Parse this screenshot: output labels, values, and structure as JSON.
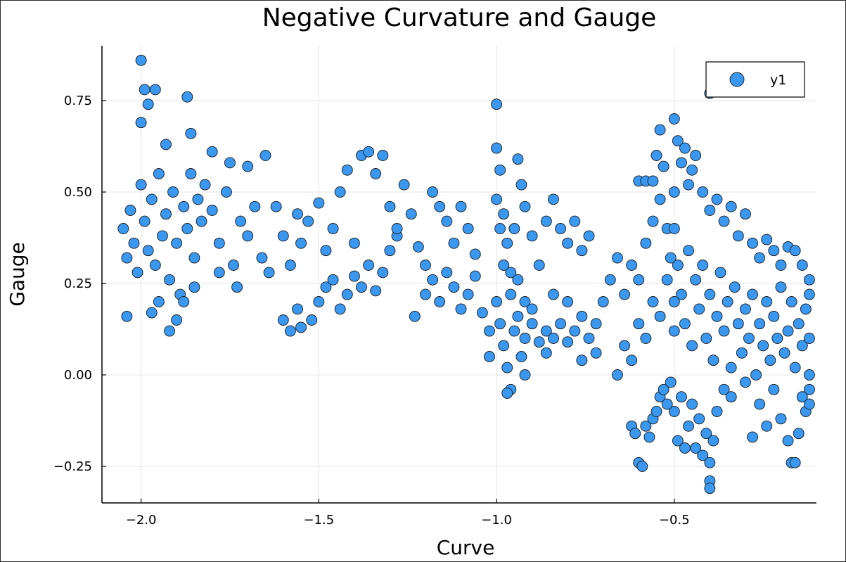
{
  "chart_data": {
    "type": "scatter",
    "title": "Negative Curvature and Gauge",
    "xlabel": "Curve",
    "ylabel": "Gauge",
    "xlim": [
      -2.11,
      -0.1
    ],
    "ylim": [
      -0.35,
      0.9
    ],
    "xticks": [
      -2.0,
      -1.5,
      -1.0,
      -0.5
    ],
    "xtick_labels": [
      "−2.0",
      "−1.5",
      "−1.0",
      "−0.5"
    ],
    "yticks": [
      -0.25,
      0.0,
      0.25,
      0.5,
      0.75
    ],
    "ytick_labels": [
      "−0.25",
      "0.00",
      "0.25",
      "0.50",
      "0.75"
    ],
    "grid": true,
    "legend_position": "top-right",
    "series": [
      {
        "name": "y1",
        "color": "#3a98f0",
        "points": [
          [
            -2.0,
            0.86
          ],
          [
            -1.99,
            0.78
          ],
          [
            -1.98,
            0.74
          ],
          [
            -1.96,
            0.78
          ],
          [
            -1.87,
            0.76
          ],
          [
            -2.0,
            0.69
          ],
          [
            -1.93,
            0.63
          ],
          [
            -1.86,
            0.66
          ],
          [
            -1.8,
            0.61
          ],
          [
            -1.75,
            0.58
          ],
          [
            -1.7,
            0.57
          ],
          [
            -1.65,
            0.6
          ],
          [
            -2.05,
            0.4
          ],
          [
            -2.04,
            0.32
          ],
          [
            -2.03,
            0.45
          ],
          [
            -2.02,
            0.36
          ],
          [
            -2.01,
            0.28
          ],
          [
            -2.0,
            0.52
          ],
          [
            -1.99,
            0.42
          ],
          [
            -1.98,
            0.34
          ],
          [
            -1.97,
            0.48
          ],
          [
            -1.96,
            0.3
          ],
          [
            -1.95,
            0.55
          ],
          [
            -1.94,
            0.38
          ],
          [
            -1.93,
            0.44
          ],
          [
            -1.92,
            0.26
          ],
          [
            -1.91,
            0.5
          ],
          [
            -1.9,
            0.36
          ],
          [
            -1.89,
            0.22
          ],
          [
            -1.88,
            0.46
          ],
          [
            -1.87,
            0.4
          ],
          [
            -1.86,
            0.55
          ],
          [
            -1.85,
            0.32
          ],
          [
            -1.84,
            0.48
          ],
          [
            -1.83,
            0.42
          ],
          [
            -1.82,
            0.52
          ],
          [
            -1.8,
            0.45
          ],
          [
            -1.78,
            0.36
          ],
          [
            -1.76,
            0.5
          ],
          [
            -1.74,
            0.3
          ],
          [
            -1.72,
            0.42
          ],
          [
            -1.7,
            0.38
          ],
          [
            -1.68,
            0.46
          ],
          [
            -1.66,
            0.32
          ],
          [
            -1.64,
            0.28
          ],
          [
            -2.04,
            0.16
          ],
          [
            -1.97,
            0.17
          ],
          [
            -1.92,
            0.12
          ],
          [
            -1.9,
            0.15
          ],
          [
            -1.88,
            0.2
          ],
          [
            -1.85,
            0.24
          ],
          [
            -1.78,
            0.28
          ],
          [
            -1.73,
            0.24
          ],
          [
            -1.95,
            0.2
          ],
          [
            -1.62,
            0.46
          ],
          [
            -1.6,
            0.38
          ],
          [
            -1.58,
            0.3
          ],
          [
            -1.56,
            0.44
          ],
          [
            -1.55,
            0.36
          ],
          [
            -1.53,
            0.42
          ],
          [
            -1.5,
            0.47
          ],
          [
            -1.48,
            0.34
          ],
          [
            -1.46,
            0.4
          ],
          [
            -1.44,
            0.5
          ],
          [
            -1.42,
            0.56
          ],
          [
            -1.4,
            0.36
          ],
          [
            -1.38,
            0.6
          ],
          [
            -1.36,
            0.61
          ],
          [
            -1.34,
            0.55
          ],
          [
            -1.32,
            0.6
          ],
          [
            -1.3,
            0.46
          ],
          [
            -1.28,
            0.38
          ],
          [
            -1.6,
            0.15
          ],
          [
            -1.58,
            0.12
          ],
          [
            -1.56,
            0.18
          ],
          [
            -1.55,
            0.13
          ],
          [
            -1.52,
            0.15
          ],
          [
            -1.5,
            0.2
          ],
          [
            -1.48,
            0.24
          ],
          [
            -1.46,
            0.26
          ],
          [
            -1.44,
            0.18
          ],
          [
            -1.42,
            0.22
          ],
          [
            -1.4,
            0.27
          ],
          [
            -1.38,
            0.24
          ],
          [
            -1.36,
            0.3
          ],
          [
            -1.34,
            0.23
          ],
          [
            -1.32,
            0.28
          ],
          [
            -1.3,
            0.34
          ],
          [
            -1.28,
            0.4
          ],
          [
            -1.26,
            0.52
          ],
          [
            -1.24,
            0.44
          ],
          [
            -1.22,
            0.35
          ],
          [
            -1.2,
            0.3
          ],
          [
            -1.18,
            0.5
          ],
          [
            -1.16,
            0.46
          ],
          [
            -1.14,
            0.42
          ],
          [
            -1.12,
            0.36
          ],
          [
            -1.1,
            0.46
          ],
          [
            -1.08,
            0.4
          ],
          [
            -1.06,
            0.33
          ],
          [
            -1.23,
            0.16
          ],
          [
            -1.2,
            0.22
          ],
          [
            -1.18,
            0.26
          ],
          [
            -1.16,
            0.2
          ],
          [
            -1.14,
            0.28
          ],
          [
            -1.12,
            0.24
          ],
          [
            -1.1,
            0.18
          ],
          [
            -1.08,
            0.22
          ],
          [
            -1.06,
            0.27
          ],
          [
            -1.04,
            0.17
          ],
          [
            -1.02,
            0.12
          ],
          [
            -1.0,
            0.74
          ],
          [
            -1.0,
            0.62
          ],
          [
            -0.99,
            0.56
          ],
          [
            -1.0,
            0.48
          ],
          [
            -0.99,
            0.4
          ],
          [
            -0.98,
            0.44
          ],
          [
            -0.97,
            0.36
          ],
          [
            -0.96,
            0.28
          ],
          [
            -0.95,
            0.4
          ],
          [
            -0.94,
            0.59
          ],
          [
            -0.93,
            0.52
          ],
          [
            -0.92,
            0.46
          ],
          [
            -0.9,
            0.38
          ],
          [
            -0.88,
            0.3
          ],
          [
            -0.86,
            0.42
          ],
          [
            -0.84,
            0.48
          ],
          [
            -0.82,
            0.4
          ],
          [
            -0.8,
            0.36
          ],
          [
            -0.78,
            0.42
          ],
          [
            -0.76,
            0.34
          ],
          [
            -0.74,
            0.38
          ],
          [
            -1.0,
            0.2
          ],
          [
            -0.99,
            0.14
          ],
          [
            -0.98,
            0.08
          ],
          [
            -0.97,
            0.02
          ],
          [
            -0.96,
            -0.04
          ],
          [
            -0.95,
            0.12
          ],
          [
            -0.94,
            0.16
          ],
          [
            -0.93,
            0.05
          ],
          [
            -0.92,
            0.1
          ],
          [
            -0.9,
            0.14
          ],
          [
            -0.88,
            0.09
          ],
          [
            -0.86,
            0.12
          ],
          [
            -0.84,
            0.1
          ],
          [
            -0.82,
            0.14
          ],
          [
            -0.8,
            0.09
          ],
          [
            -0.78,
            0.12
          ],
          [
            -0.76,
            0.16
          ],
          [
            -0.74,
            0.1
          ],
          [
            -0.72,
            0.14
          ],
          [
            -0.7,
            0.2
          ],
          [
            -0.68,
            0.26
          ],
          [
            -0.66,
            0.32
          ],
          [
            -0.64,
            0.22
          ],
          [
            -0.62,
            0.3
          ],
          [
            -0.6,
            0.26
          ],
          [
            -0.58,
            0.36
          ],
          [
            -0.56,
            0.42
          ],
          [
            -0.54,
            0.48
          ],
          [
            -0.52,
            0.4
          ],
          [
            -0.98,
            0.3
          ],
          [
            -0.96,
            0.22
          ],
          [
            -0.94,
            0.26
          ],
          [
            -0.92,
            0.2
          ],
          [
            -1.02,
            0.05
          ],
          [
            -0.97,
            -0.05
          ],
          [
            -0.92,
            0.0
          ],
          [
            -0.9,
            0.18
          ],
          [
            -0.86,
            0.06
          ],
          [
            -0.84,
            0.22
          ],
          [
            -0.8,
            0.2
          ],
          [
            -0.76,
            0.04
          ],
          [
            -0.72,
            0.06
          ],
          [
            -0.6,
            0.53
          ],
          [
            -0.58,
            0.53
          ],
          [
            -0.56,
            0.53
          ],
          [
            -0.55,
            0.6
          ],
          [
            -0.54,
            0.67
          ],
          [
            -0.53,
            0.57
          ],
          [
            -0.5,
            0.7
          ],
          [
            -0.49,
            0.64
          ],
          [
            -0.48,
            0.58
          ],
          [
            -0.47,
            0.62
          ],
          [
            -0.46,
            0.52
          ],
          [
            -0.45,
            0.56
          ],
          [
            -0.44,
            0.6
          ],
          [
            -0.42,
            0.5
          ],
          [
            -0.4,
            0.77
          ],
          [
            -0.4,
            0.45
          ],
          [
            -0.38,
            0.48
          ],
          [
            -0.36,
            0.42
          ],
          [
            -0.34,
            0.46
          ],
          [
            -0.32,
            0.38
          ],
          [
            -0.3,
            0.44
          ],
          [
            -0.28,
            0.36
          ],
          [
            -0.26,
            0.32
          ],
          [
            -0.24,
            0.37
          ],
          [
            -0.22,
            0.34
          ],
          [
            -0.2,
            0.3
          ],
          [
            -0.18,
            0.35
          ],
          [
            -0.16,
            0.34
          ],
          [
            -0.14,
            0.3
          ],
          [
            -0.12,
            0.26
          ],
          [
            -0.5,
            0.4
          ],
          [
            -0.49,
            0.3
          ],
          [
            -0.48,
            0.22
          ],
          [
            -0.47,
            0.14
          ],
          [
            -0.46,
            0.34
          ],
          [
            -0.45,
            0.08
          ],
          [
            -0.44,
            0.26
          ],
          [
            -0.43,
            0.18
          ],
          [
            -0.42,
            0.3
          ],
          [
            -0.41,
            0.1
          ],
          [
            -0.4,
            0.22
          ],
          [
            -0.39,
            0.04
          ],
          [
            -0.38,
            0.16
          ],
          [
            -0.37,
            0.28
          ],
          [
            -0.36,
            0.12
          ],
          [
            -0.35,
            0.2
          ],
          [
            -0.34,
            0.02
          ],
          [
            -0.33,
            0.24
          ],
          [
            -0.32,
            0.14
          ],
          [
            -0.31,
            0.06
          ],
          [
            -0.3,
            0.18
          ],
          [
            -0.29,
            0.1
          ],
          [
            -0.28,
            0.22
          ],
          [
            -0.27,
            0.0
          ],
          [
            -0.26,
            0.14
          ],
          [
            -0.25,
            0.08
          ],
          [
            -0.24,
            0.2
          ],
          [
            -0.23,
            0.04
          ],
          [
            -0.22,
            0.16
          ],
          [
            -0.21,
            0.1
          ],
          [
            -0.2,
            0.24
          ],
          [
            -0.19,
            0.06
          ],
          [
            -0.18,
            0.12
          ],
          [
            -0.17,
            0.2
          ],
          [
            -0.16,
            0.02
          ],
          [
            -0.15,
            0.14
          ],
          [
            -0.14,
            0.08
          ],
          [
            -0.13,
            0.18
          ],
          [
            -0.12,
            0.0
          ],
          [
            -0.12,
            0.22
          ],
          [
            -0.12,
            0.1
          ],
          [
            -0.12,
            -0.04
          ],
          [
            -0.5,
            -0.1
          ],
          [
            -0.49,
            -0.18
          ],
          [
            -0.48,
            -0.06
          ],
          [
            -0.47,
            -0.2
          ],
          [
            -0.46,
            -0.14
          ],
          [
            -0.45,
            -0.08
          ],
          [
            -0.44,
            -0.2
          ],
          [
            -0.43,
            -0.12
          ],
          [
            -0.42,
            -0.22
          ],
          [
            -0.41,
            -0.16
          ],
          [
            -0.4,
            -0.24
          ],
          [
            -0.4,
            -0.29
          ],
          [
            -0.4,
            -0.31
          ],
          [
            -0.39,
            -0.18
          ],
          [
            -0.38,
            -0.1
          ],
          [
            -0.36,
            -0.04
          ],
          [
            -0.34,
            -0.06
          ],
          [
            -0.3,
            -0.02
          ],
          [
            -0.28,
            -0.17
          ],
          [
            -0.26,
            -0.08
          ],
          [
            -0.24,
            -0.14
          ],
          [
            -0.22,
            -0.04
          ],
          [
            -0.2,
            -0.12
          ],
          [
            -0.18,
            -0.18
          ],
          [
            -0.17,
            -0.24
          ],
          [
            -0.16,
            -0.24
          ],
          [
            -0.15,
            -0.16
          ],
          [
            -0.14,
            -0.06
          ],
          [
            -0.13,
            -0.1
          ],
          [
            -0.12,
            -0.08
          ],
          [
            -0.62,
            -0.14
          ],
          [
            -0.61,
            -0.16
          ],
          [
            -0.6,
            -0.24
          ],
          [
            -0.59,
            -0.25
          ],
          [
            -0.58,
            -0.14
          ],
          [
            -0.57,
            -0.17
          ],
          [
            -0.56,
            -0.12
          ],
          [
            -0.55,
            -0.1
          ],
          [
            -0.54,
            -0.06
          ],
          [
            -0.53,
            -0.04
          ],
          [
            -0.52,
            -0.08
          ],
          [
            -0.51,
            -0.02
          ],
          [
            -0.66,
            0.0
          ],
          [
            -0.64,
            0.08
          ],
          [
            -0.62,
            0.04
          ],
          [
            -0.6,
            0.14
          ],
          [
            -0.58,
            0.1
          ],
          [
            -0.56,
            0.2
          ],
          [
            -0.54,
            0.16
          ],
          [
            -0.52,
            0.26
          ],
          [
            -0.5,
            0.12
          ],
          [
            -0.5,
            0.2
          ],
          [
            -0.51,
            0.32
          ],
          [
            -0.5,
            0.5
          ]
        ]
      }
    ]
  }
}
